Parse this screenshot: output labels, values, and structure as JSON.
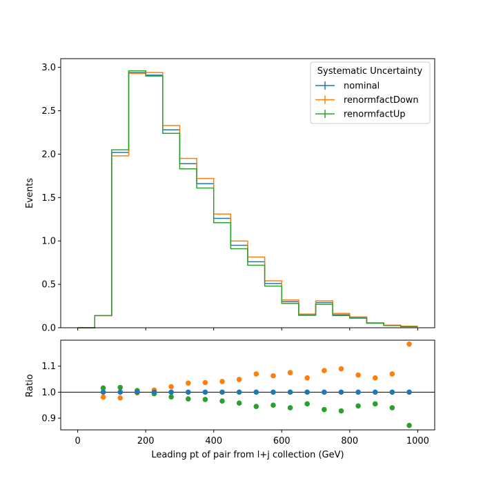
{
  "chart_data": [
    {
      "type": "line",
      "panel": "main",
      "title": "",
      "xlabel": "",
      "ylabel": "Events",
      "xlim": [
        -50,
        1050
      ],
      "ylim": [
        0,
        3.1
      ],
      "yticks": [
        0.0,
        0.5,
        1.0,
        1.5,
        2.0,
        2.5,
        3.0
      ],
      "ytick_labels": [
        "0.0",
        "0.5",
        "1.0",
        "1.5",
        "2.0",
        "2.5",
        "3.0"
      ],
      "xticks": [
        0,
        200,
        400,
        600,
        800,
        1000
      ],
      "grid": false,
      "legend": {
        "title": "Systematic Uncertainty",
        "placement": "top-right"
      },
      "bin_edges": [
        0,
        50,
        100,
        150,
        200,
        250,
        300,
        350,
        400,
        450,
        500,
        550,
        600,
        650,
        700,
        750,
        800,
        850,
        900,
        950,
        1000
      ],
      "series": [
        {
          "name": "nominal",
          "color": "#1f77b4",
          "values": [
            0.0,
            0.14,
            2.02,
            2.94,
            2.91,
            2.28,
            1.89,
            1.66,
            1.26,
            0.95,
            0.76,
            0.51,
            0.3,
            0.15,
            0.29,
            0.15,
            0.12,
            0.055,
            0.028,
            0.015
          ]
        },
        {
          "name": "renormfactDown",
          "color": "#ff7f0e",
          "values": [
            0.0,
            0.14,
            1.98,
            2.93,
            2.94,
            2.33,
            1.95,
            1.72,
            1.31,
            1.0,
            0.815,
            0.54,
            0.32,
            0.158,
            0.31,
            0.165,
            0.125,
            0.058,
            0.03,
            0.0178
          ]
        },
        {
          "name": "renormfactUp",
          "color": "#2ca02c",
          "values": [
            0.0,
            0.14,
            2.05,
            2.96,
            2.9,
            2.24,
            1.83,
            1.61,
            1.21,
            0.91,
            0.72,
            0.48,
            0.28,
            0.143,
            0.27,
            0.14,
            0.11,
            0.052,
            0.026,
            0.013
          ]
        }
      ]
    },
    {
      "type": "scatter",
      "panel": "ratio",
      "title": "",
      "xlabel": "Leading pt of pair from l+j collection (GeV)",
      "ylabel": "Ratio",
      "xlim": [
        -50,
        1050
      ],
      "ylim": [
        0.855,
        1.2
      ],
      "yticks": [
        0.9,
        1.0,
        1.1
      ],
      "ytick_labels": [
        "0.9",
        "1.0",
        "1.1"
      ],
      "xticks": [
        0,
        200,
        400,
        600,
        800,
        1000
      ],
      "xtick_labels": [
        "0",
        "200",
        "400",
        "600",
        "800",
        "1000"
      ],
      "reference_line": 1.0,
      "grid": false,
      "x": [
        75,
        125,
        175,
        225,
        275,
        325,
        375,
        425,
        475,
        525,
        575,
        625,
        675,
        725,
        775,
        825,
        875,
        925,
        975
      ],
      "series": [
        {
          "name": "nominal",
          "color": "#1f77b4",
          "values": [
            1.0,
            1.0,
            1.0,
            1.0,
            1.0,
            1.0,
            1.0,
            1.0,
            1.0,
            1.0,
            1.0,
            1.0,
            1.0,
            1.0,
            1.0,
            1.0,
            1.0,
            1.0,
            1.0
          ]
        },
        {
          "name": "renormfactDown",
          "color": "#ff7f0e",
          "values": [
            0.981,
            0.978,
            0.997,
            1.008,
            1.021,
            1.035,
            1.037,
            1.041,
            1.049,
            1.07,
            1.063,
            1.075,
            1.055,
            1.083,
            1.09,
            1.066,
            1.055,
            1.07,
            1.185
          ]
        },
        {
          "name": "renormfactUp",
          "color": "#2ca02c",
          "values": [
            1.016,
            1.018,
            1.006,
            0.994,
            0.982,
            0.974,
            0.972,
            0.966,
            0.958,
            0.945,
            0.95,
            0.94,
            0.955,
            0.933,
            0.928,
            0.947,
            0.955,
            0.94,
            0.872
          ]
        }
      ]
    }
  ]
}
